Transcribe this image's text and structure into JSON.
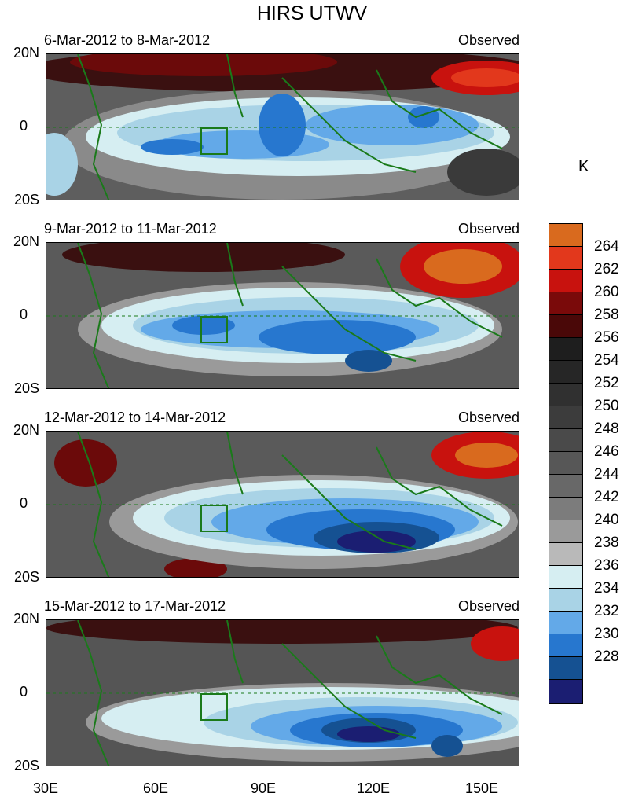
{
  "figure": {
    "title": "HIRS UTWV",
    "units": "K"
  },
  "panels": [
    {
      "dates": "6-Mar-2012 to 8-Mar-2012",
      "label": "Observed"
    },
    {
      "dates": "9-Mar-2012 to 11-Mar-2012",
      "label": "Observed"
    },
    {
      "dates": "12-Mar-2012 to 14-Mar-2012",
      "label": "Observed"
    },
    {
      "dates": "15-Mar-2012 to 17-Mar-2012",
      "label": "Observed"
    }
  ],
  "axes": {
    "lat_ticks": [
      "20N",
      "0",
      "20S"
    ],
    "lon_ticks": [
      "30E",
      "60E",
      "90E",
      "120E",
      "150E"
    ],
    "lat_range": [
      -20,
      20
    ],
    "lon_range": [
      30,
      163
    ]
  },
  "colorbar": {
    "tick_labels": [
      "264",
      "262",
      "260",
      "258",
      "256",
      "254",
      "252",
      "250",
      "248",
      "246",
      "244",
      "242",
      "240",
      "238",
      "236",
      "234",
      "232",
      "230",
      "228"
    ],
    "colors": [
      "#d96a1e",
      "#e2381c",
      "#c8120e",
      "#7a0a0a",
      "#4a0808",
      "#1e1e1e",
      "#262626",
      "#303030",
      "#3c3c3c",
      "#4a4a4a",
      "#575757",
      "#686868",
      "#7c7c7c",
      "#9a9a9a",
      "#b9b9b9",
      "#d6eef2",
      "#a9d3e6",
      "#63a9e8",
      "#2777cf",
      "#155192",
      "#1b1e72"
    ]
  },
  "colors": {
    "coastline": "#1a7a1a",
    "equator_line": "#1a7a1a"
  }
}
